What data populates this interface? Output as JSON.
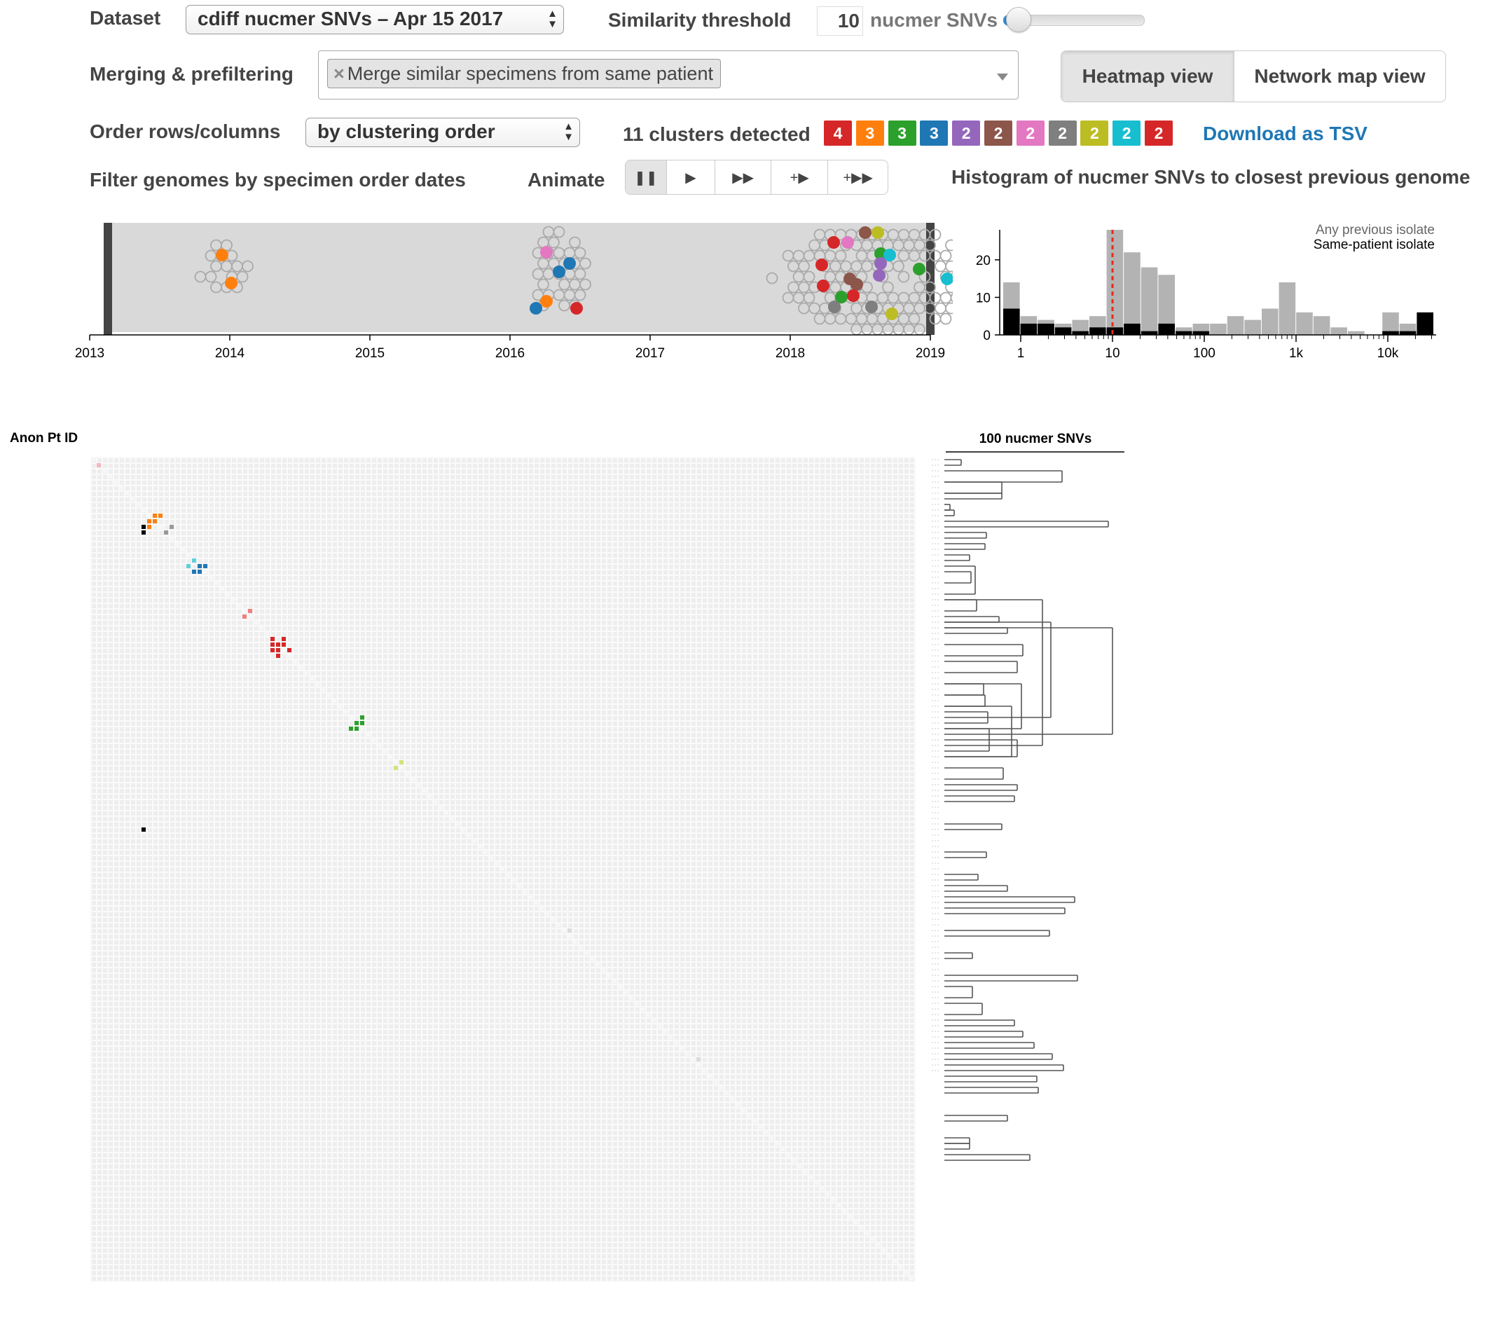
{
  "dataset": {
    "label": "Dataset",
    "value": "cdiff nucmer SNVs – Apr 15 2017"
  },
  "similarity": {
    "label": "Similarity threshold",
    "value": "10",
    "unit": "nucmer SNVs",
    "slider_fraction": 0.02
  },
  "merging": {
    "label": "Merging & prefiltering",
    "chip": "Merge similar specimens from same patient",
    "chip_remove": "×"
  },
  "views": {
    "heatmap": "Heatmap view",
    "network": "Network map view",
    "active": "heatmap"
  },
  "order": {
    "label": "Order rows/columns",
    "value": "by clustering order"
  },
  "clusters": {
    "summary": "11 clusters detected",
    "badges": [
      {
        "count": "4",
        "color": "#d62728"
      },
      {
        "count": "3",
        "color": "#ff7f0e"
      },
      {
        "count": "3",
        "color": "#2ca02c"
      },
      {
        "count": "3",
        "color": "#1f77b4"
      },
      {
        "count": "2",
        "color": "#9467bd"
      },
      {
        "count": "2",
        "color": "#8c564b"
      },
      {
        "count": "2",
        "color": "#e377c2"
      },
      {
        "count": "2",
        "color": "#7f7f7f"
      },
      {
        "count": "2",
        "color": "#bcbd22"
      },
      {
        "count": "2",
        "color": "#17becf"
      },
      {
        "count": "2",
        "color": "#d62728"
      }
    ],
    "download": "Download as TSV"
  },
  "filter": {
    "label": "Filter genomes by specimen order dates"
  },
  "animate": {
    "label": "Animate",
    "buttons": [
      "pause-icon",
      "play-icon",
      "fast-forward-icon",
      "plus-play-icon",
      "plus-fast-forward-icon"
    ],
    "active_index": 0
  },
  "timeline": {
    "ticks": [
      "2013",
      "2014",
      "2015",
      "2016",
      "2017",
      "2018",
      "2019"
    ],
    "range": [
      2013,
      2019
    ]
  },
  "histogram": {
    "title": "Histogram of nucmer SNVs to closest previous genome",
    "legend_any": "Any previous isolate",
    "legend_same": "Same-patient isolate",
    "y_ticks": [
      "0",
      "10",
      "20"
    ],
    "x_ticks": [
      "1",
      "10",
      "100",
      "1k",
      "10k"
    ],
    "threshold": 10,
    "colors": {
      "any": "#b3b3b3",
      "same": "#000000",
      "threshold": "#e8291c"
    }
  },
  "chart_data": {
    "type": "bar",
    "title": "Histogram of nucmer SNVs to closest previous genome",
    "xlabel": "",
    "ylabel": "",
    "x_scale": "log",
    "ylim": [
      0,
      28
    ],
    "grid": false,
    "legend_placement": "top-right",
    "series": [
      {
        "name": "Any previous isolate",
        "values": [
          14,
          5,
          4,
          3,
          4,
          5,
          28,
          22,
          18,
          16,
          2,
          3,
          3,
          5,
          4,
          7,
          14,
          6,
          5,
          2,
          1,
          0,
          6,
          3,
          5
        ]
      },
      {
        "name": "Same-patient isolate",
        "values": [
          7,
          3,
          3,
          2,
          1,
          2,
          2,
          3,
          1,
          3,
          1,
          1,
          0,
          0,
          0,
          0,
          0,
          0,
          0,
          0,
          0,
          0,
          1,
          1,
          6
        ]
      }
    ]
  },
  "heatmap": {
    "row_label": "Anon Pt ID",
    "scale_label": "100 nucmer SNVs"
  }
}
